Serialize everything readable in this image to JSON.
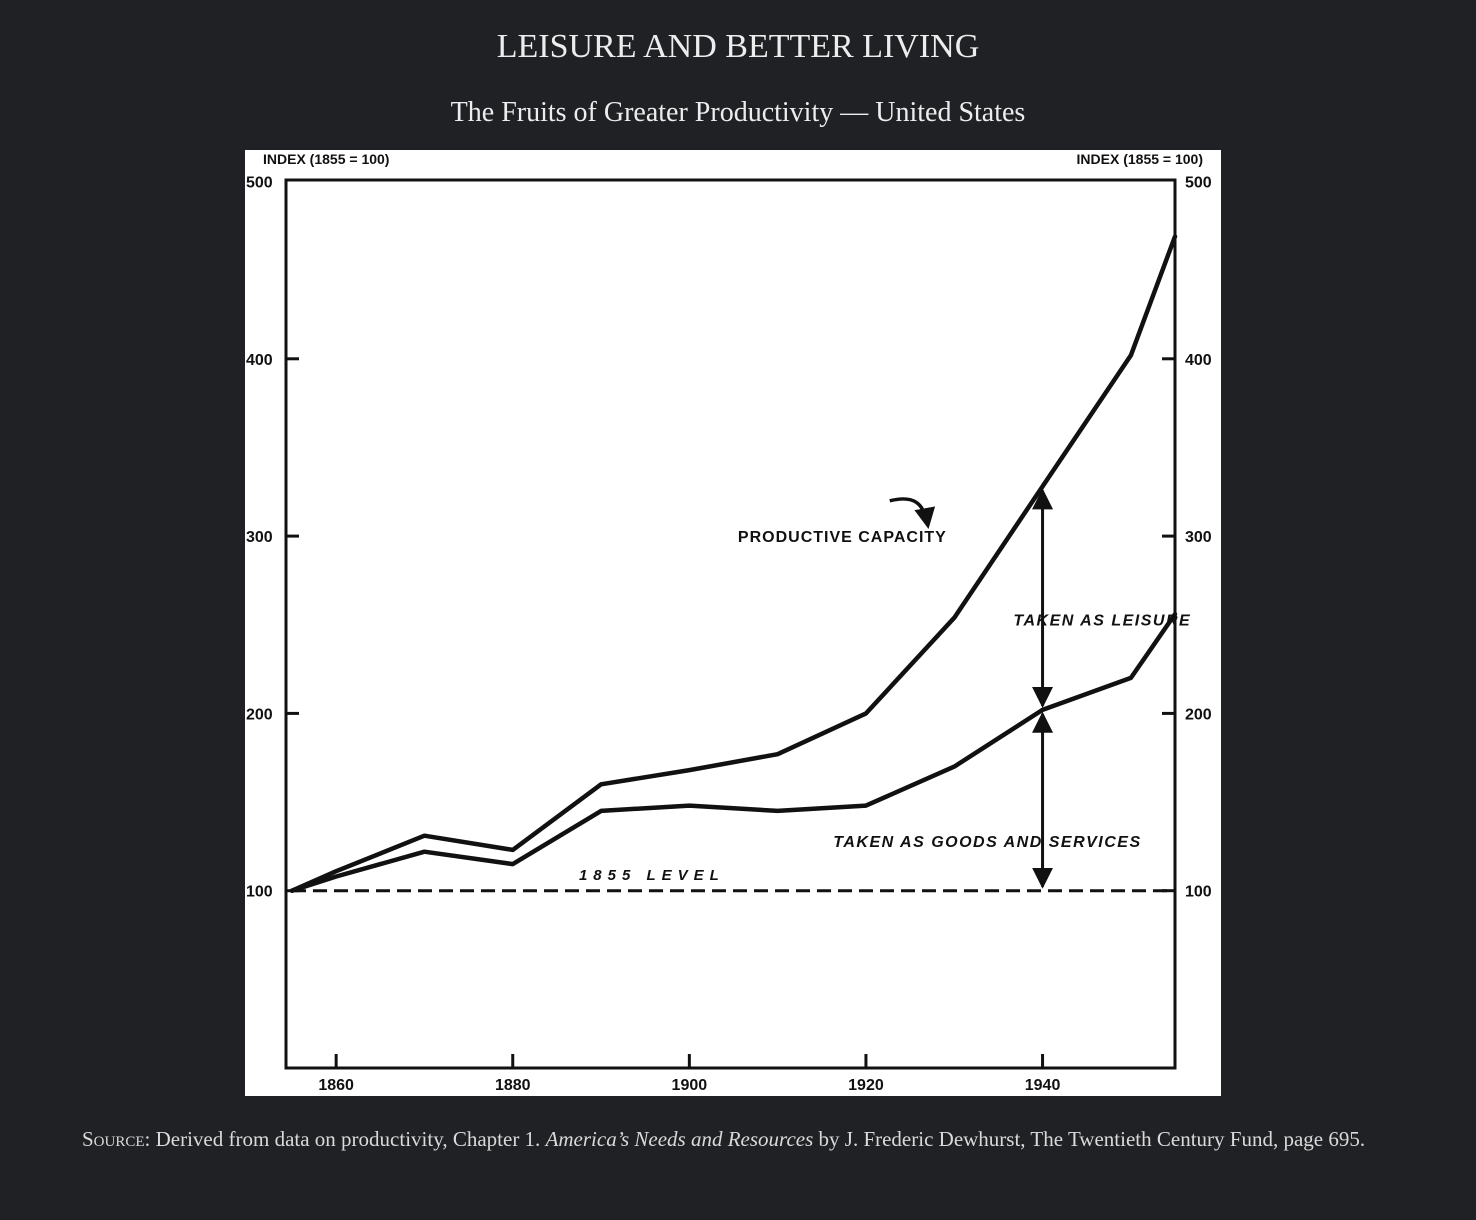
{
  "page": {
    "title": "LEISURE AND BETTER LIVING",
    "subtitle": "The Fruits of Greater Productivity — United States"
  },
  "source": {
    "lead": "Source",
    "text_before": ": Derived from data on productivity, Chapter 1. ",
    "book_title": "America’s Needs and Resources",
    "text_after": " by J. Frederic Dewhurst, The Twentieth Century Fund, page 695."
  },
  "chart_data": {
    "type": "line",
    "ylabel_left": "INDEX (1855 = 100)",
    "ylabel_right": "INDEX (1855 = 100)",
    "xlim": [
      1855,
      1955
    ],
    "ylim": [
      0,
      500
    ],
    "x_ticks": [
      1860,
      1880,
      1900,
      1920,
      1940
    ],
    "x_tick_labels": [
      "1860",
      "1880",
      "1900",
      "1920",
      "1940"
    ],
    "y_ticks": [
      100,
      200,
      300,
      400,
      500
    ],
    "y_tick_labels": [
      "100",
      "200",
      "300",
      "400",
      "500"
    ],
    "grid": false,
    "series": [
      {
        "id": "productive_capacity",
        "style": "solid",
        "x": [
          1855,
          1860,
          1870,
          1880,
          1890,
          1900,
          1910,
          1920,
          1930,
          1940,
          1950,
          1955
        ],
        "y": [
          100,
          111,
          131,
          123,
          160,
          168,
          177,
          200,
          254,
          328,
          402,
          469
        ]
      },
      {
        "id": "goods_and_services",
        "style": "solid",
        "x": [
          1855,
          1860,
          1870,
          1880,
          1890,
          1900,
          1910,
          1920,
          1930,
          1940,
          1950,
          1955
        ],
        "y": [
          100,
          108,
          122,
          115,
          145,
          148,
          145,
          148,
          170,
          202,
          220,
          256
        ]
      },
      {
        "id": "level_1855",
        "style": "dashed",
        "x": [
          1855,
          1955
        ],
        "y": [
          100,
          100
        ]
      }
    ],
    "annotations": {
      "productive_capacity": "PRODUCTIVE CAPACITY",
      "leisure": "TAKEN AS LEISURE",
      "goods": "TAKEN AS GOODS AND SERVICES",
      "level": "1855 LEVEL"
    },
    "double_arrows": [
      {
        "x": 1940,
        "from": 202,
        "to": 328,
        "meaning": "leisure"
      },
      {
        "x": 1940,
        "from": 100,
        "to": 202,
        "meaning": "goods"
      }
    ],
    "colors": {
      "line": "#111111",
      "background": "#ffffff"
    }
  }
}
